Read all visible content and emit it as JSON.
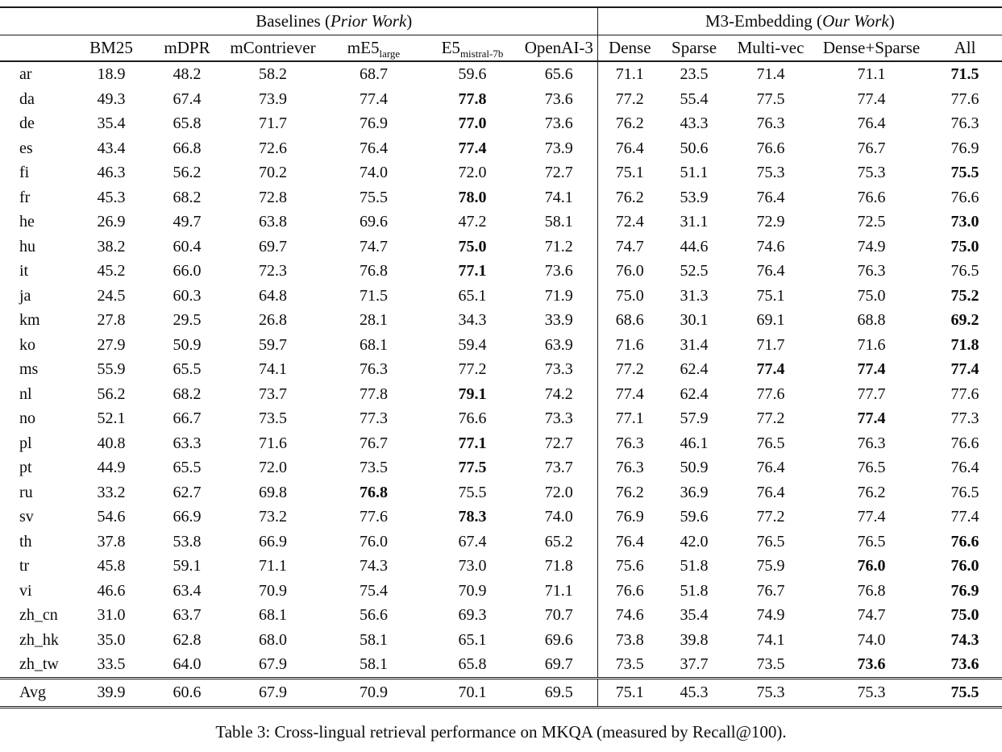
{
  "table": {
    "groups": {
      "left": {
        "prefix": "Baselines (",
        "italic": "Prior Work",
        "suffix": ")"
      },
      "right": {
        "prefix": "M3-Embedding (",
        "italic": "Our Work",
        "suffix": ")"
      }
    },
    "columns": [
      {
        "main": "BM25"
      },
      {
        "main": "mDPR"
      },
      {
        "main": "mContriever"
      },
      {
        "main": "mE5",
        "sub": "large"
      },
      {
        "main": "E5",
        "sub": "mistral-7b"
      },
      {
        "main": "OpenAI-3"
      },
      {
        "main": "Dense"
      },
      {
        "main": "Sparse"
      },
      {
        "main": "Multi-vec"
      },
      {
        "main": "Dense+Sparse"
      },
      {
        "main": "All"
      }
    ],
    "rows": [
      {
        "lang": "ar",
        "values": [
          "18.9",
          "48.2",
          "58.2",
          "68.7",
          "59.6",
          "65.6",
          "71.1",
          "23.5",
          "71.4",
          "71.1",
          "71.5"
        ],
        "bold": [
          10
        ]
      },
      {
        "lang": "da",
        "values": [
          "49.3",
          "67.4",
          "73.9",
          "77.4",
          "77.8",
          "73.6",
          "77.2",
          "55.4",
          "77.5",
          "77.4",
          "77.6"
        ],
        "bold": [
          4
        ]
      },
      {
        "lang": "de",
        "values": [
          "35.4",
          "65.8",
          "71.7",
          "76.9",
          "77.0",
          "73.6",
          "76.2",
          "43.3",
          "76.3",
          "76.4",
          "76.3"
        ],
        "bold": [
          4
        ]
      },
      {
        "lang": "es",
        "values": [
          "43.4",
          "66.8",
          "72.6",
          "76.4",
          "77.4",
          "73.9",
          "76.4",
          "50.6",
          "76.6",
          "76.7",
          "76.9"
        ],
        "bold": [
          4
        ]
      },
      {
        "lang": "fi",
        "values": [
          "46.3",
          "56.2",
          "70.2",
          "74.0",
          "72.0",
          "72.7",
          "75.1",
          "51.1",
          "75.3",
          "75.3",
          "75.5"
        ],
        "bold": [
          10
        ]
      },
      {
        "lang": "fr",
        "values": [
          "45.3",
          "68.2",
          "72.8",
          "75.5",
          "78.0",
          "74.1",
          "76.2",
          "53.9",
          "76.4",
          "76.6",
          "76.6"
        ],
        "bold": [
          4
        ]
      },
      {
        "lang": "he",
        "values": [
          "26.9",
          "49.7",
          "63.8",
          "69.6",
          "47.2",
          "58.1",
          "72.4",
          "31.1",
          "72.9",
          "72.5",
          "73.0"
        ],
        "bold": [
          10
        ]
      },
      {
        "lang": "hu",
        "values": [
          "38.2",
          "60.4",
          "69.7",
          "74.7",
          "75.0",
          "71.2",
          "74.7",
          "44.6",
          "74.6",
          "74.9",
          "75.0"
        ],
        "bold": [
          4,
          10
        ]
      },
      {
        "lang": "it",
        "values": [
          "45.2",
          "66.0",
          "72.3",
          "76.8",
          "77.1",
          "73.6",
          "76.0",
          "52.5",
          "76.4",
          "76.3",
          "76.5"
        ],
        "bold": [
          4
        ]
      },
      {
        "lang": "ja",
        "values": [
          "24.5",
          "60.3",
          "64.8",
          "71.5",
          "65.1",
          "71.9",
          "75.0",
          "31.3",
          "75.1",
          "75.0",
          "75.2"
        ],
        "bold": [
          10
        ]
      },
      {
        "lang": "km",
        "values": [
          "27.8",
          "29.5",
          "26.8",
          "28.1",
          "34.3",
          "33.9",
          "68.6",
          "30.1",
          "69.1",
          "68.8",
          "69.2"
        ],
        "bold": [
          10
        ]
      },
      {
        "lang": "ko",
        "values": [
          "27.9",
          "50.9",
          "59.7",
          "68.1",
          "59.4",
          "63.9",
          "71.6",
          "31.4",
          "71.7",
          "71.6",
          "71.8"
        ],
        "bold": [
          10
        ]
      },
      {
        "lang": "ms",
        "values": [
          "55.9",
          "65.5",
          "74.1",
          "76.3",
          "77.2",
          "73.3",
          "77.2",
          "62.4",
          "77.4",
          "77.4",
          "77.4"
        ],
        "bold": [
          8,
          9,
          10
        ]
      },
      {
        "lang": "nl",
        "values": [
          "56.2",
          "68.2",
          "73.7",
          "77.8",
          "79.1",
          "74.2",
          "77.4",
          "62.4",
          "77.6",
          "77.7",
          "77.6"
        ],
        "bold": [
          4
        ]
      },
      {
        "lang": "no",
        "values": [
          "52.1",
          "66.7",
          "73.5",
          "77.3",
          "76.6",
          "73.3",
          "77.1",
          "57.9",
          "77.2",
          "77.4",
          "77.3"
        ],
        "bold": [
          9
        ]
      },
      {
        "lang": "pl",
        "values": [
          "40.8",
          "63.3",
          "71.6",
          "76.7",
          "77.1",
          "72.7",
          "76.3",
          "46.1",
          "76.5",
          "76.3",
          "76.6"
        ],
        "bold": [
          4
        ]
      },
      {
        "lang": "pt",
        "values": [
          "44.9",
          "65.5",
          "72.0",
          "73.5",
          "77.5",
          "73.7",
          "76.3",
          "50.9",
          "76.4",
          "76.5",
          "76.4"
        ],
        "bold": [
          4
        ]
      },
      {
        "lang": "ru",
        "values": [
          "33.2",
          "62.7",
          "69.8",
          "76.8",
          "75.5",
          "72.0",
          "76.2",
          "36.9",
          "76.4",
          "76.2",
          "76.5"
        ],
        "bold": [
          3
        ]
      },
      {
        "lang": "sv",
        "values": [
          "54.6",
          "66.9",
          "73.2",
          "77.6",
          "78.3",
          "74.0",
          "76.9",
          "59.6",
          "77.2",
          "77.4",
          "77.4"
        ],
        "bold": [
          4
        ]
      },
      {
        "lang": "th",
        "values": [
          "37.8",
          "53.8",
          "66.9",
          "76.0",
          "67.4",
          "65.2",
          "76.4",
          "42.0",
          "76.5",
          "76.5",
          "76.6"
        ],
        "bold": [
          10
        ]
      },
      {
        "lang": "tr",
        "values": [
          "45.8",
          "59.1",
          "71.1",
          "74.3",
          "73.0",
          "71.8",
          "75.6",
          "51.8",
          "75.9",
          "76.0",
          "76.0"
        ],
        "bold": [
          9,
          10
        ]
      },
      {
        "lang": "vi",
        "values": [
          "46.6",
          "63.4",
          "70.9",
          "75.4",
          "70.9",
          "71.1",
          "76.6",
          "51.8",
          "76.7",
          "76.8",
          "76.9"
        ],
        "bold": [
          10
        ]
      },
      {
        "lang": "zh_cn",
        "values": [
          "31.0",
          "63.7",
          "68.1",
          "56.6",
          "69.3",
          "70.7",
          "74.6",
          "35.4",
          "74.9",
          "74.7",
          "75.0"
        ],
        "bold": [
          10
        ]
      },
      {
        "lang": "zh_hk",
        "values": [
          "35.0",
          "62.8",
          "68.0",
          "58.1",
          "65.1",
          "69.6",
          "73.8",
          "39.8",
          "74.1",
          "74.0",
          "74.3"
        ],
        "bold": [
          10
        ]
      },
      {
        "lang": "zh_tw",
        "values": [
          "33.5",
          "64.0",
          "67.9",
          "58.1",
          "65.8",
          "69.7",
          "73.5",
          "37.7",
          "73.5",
          "73.6",
          "73.6"
        ],
        "bold": [
          9,
          10
        ]
      },
      {
        "lang": "Avg",
        "values": [
          "39.9",
          "60.6",
          "67.9",
          "70.9",
          "70.1",
          "69.5",
          "75.1",
          "45.3",
          "75.3",
          "75.3",
          "75.5"
        ],
        "bold": [
          10
        ],
        "is_avg": true
      }
    ]
  },
  "caption": "Table 3: Cross-lingual retrieval performance on MKQA (measured by Recall@100)."
}
